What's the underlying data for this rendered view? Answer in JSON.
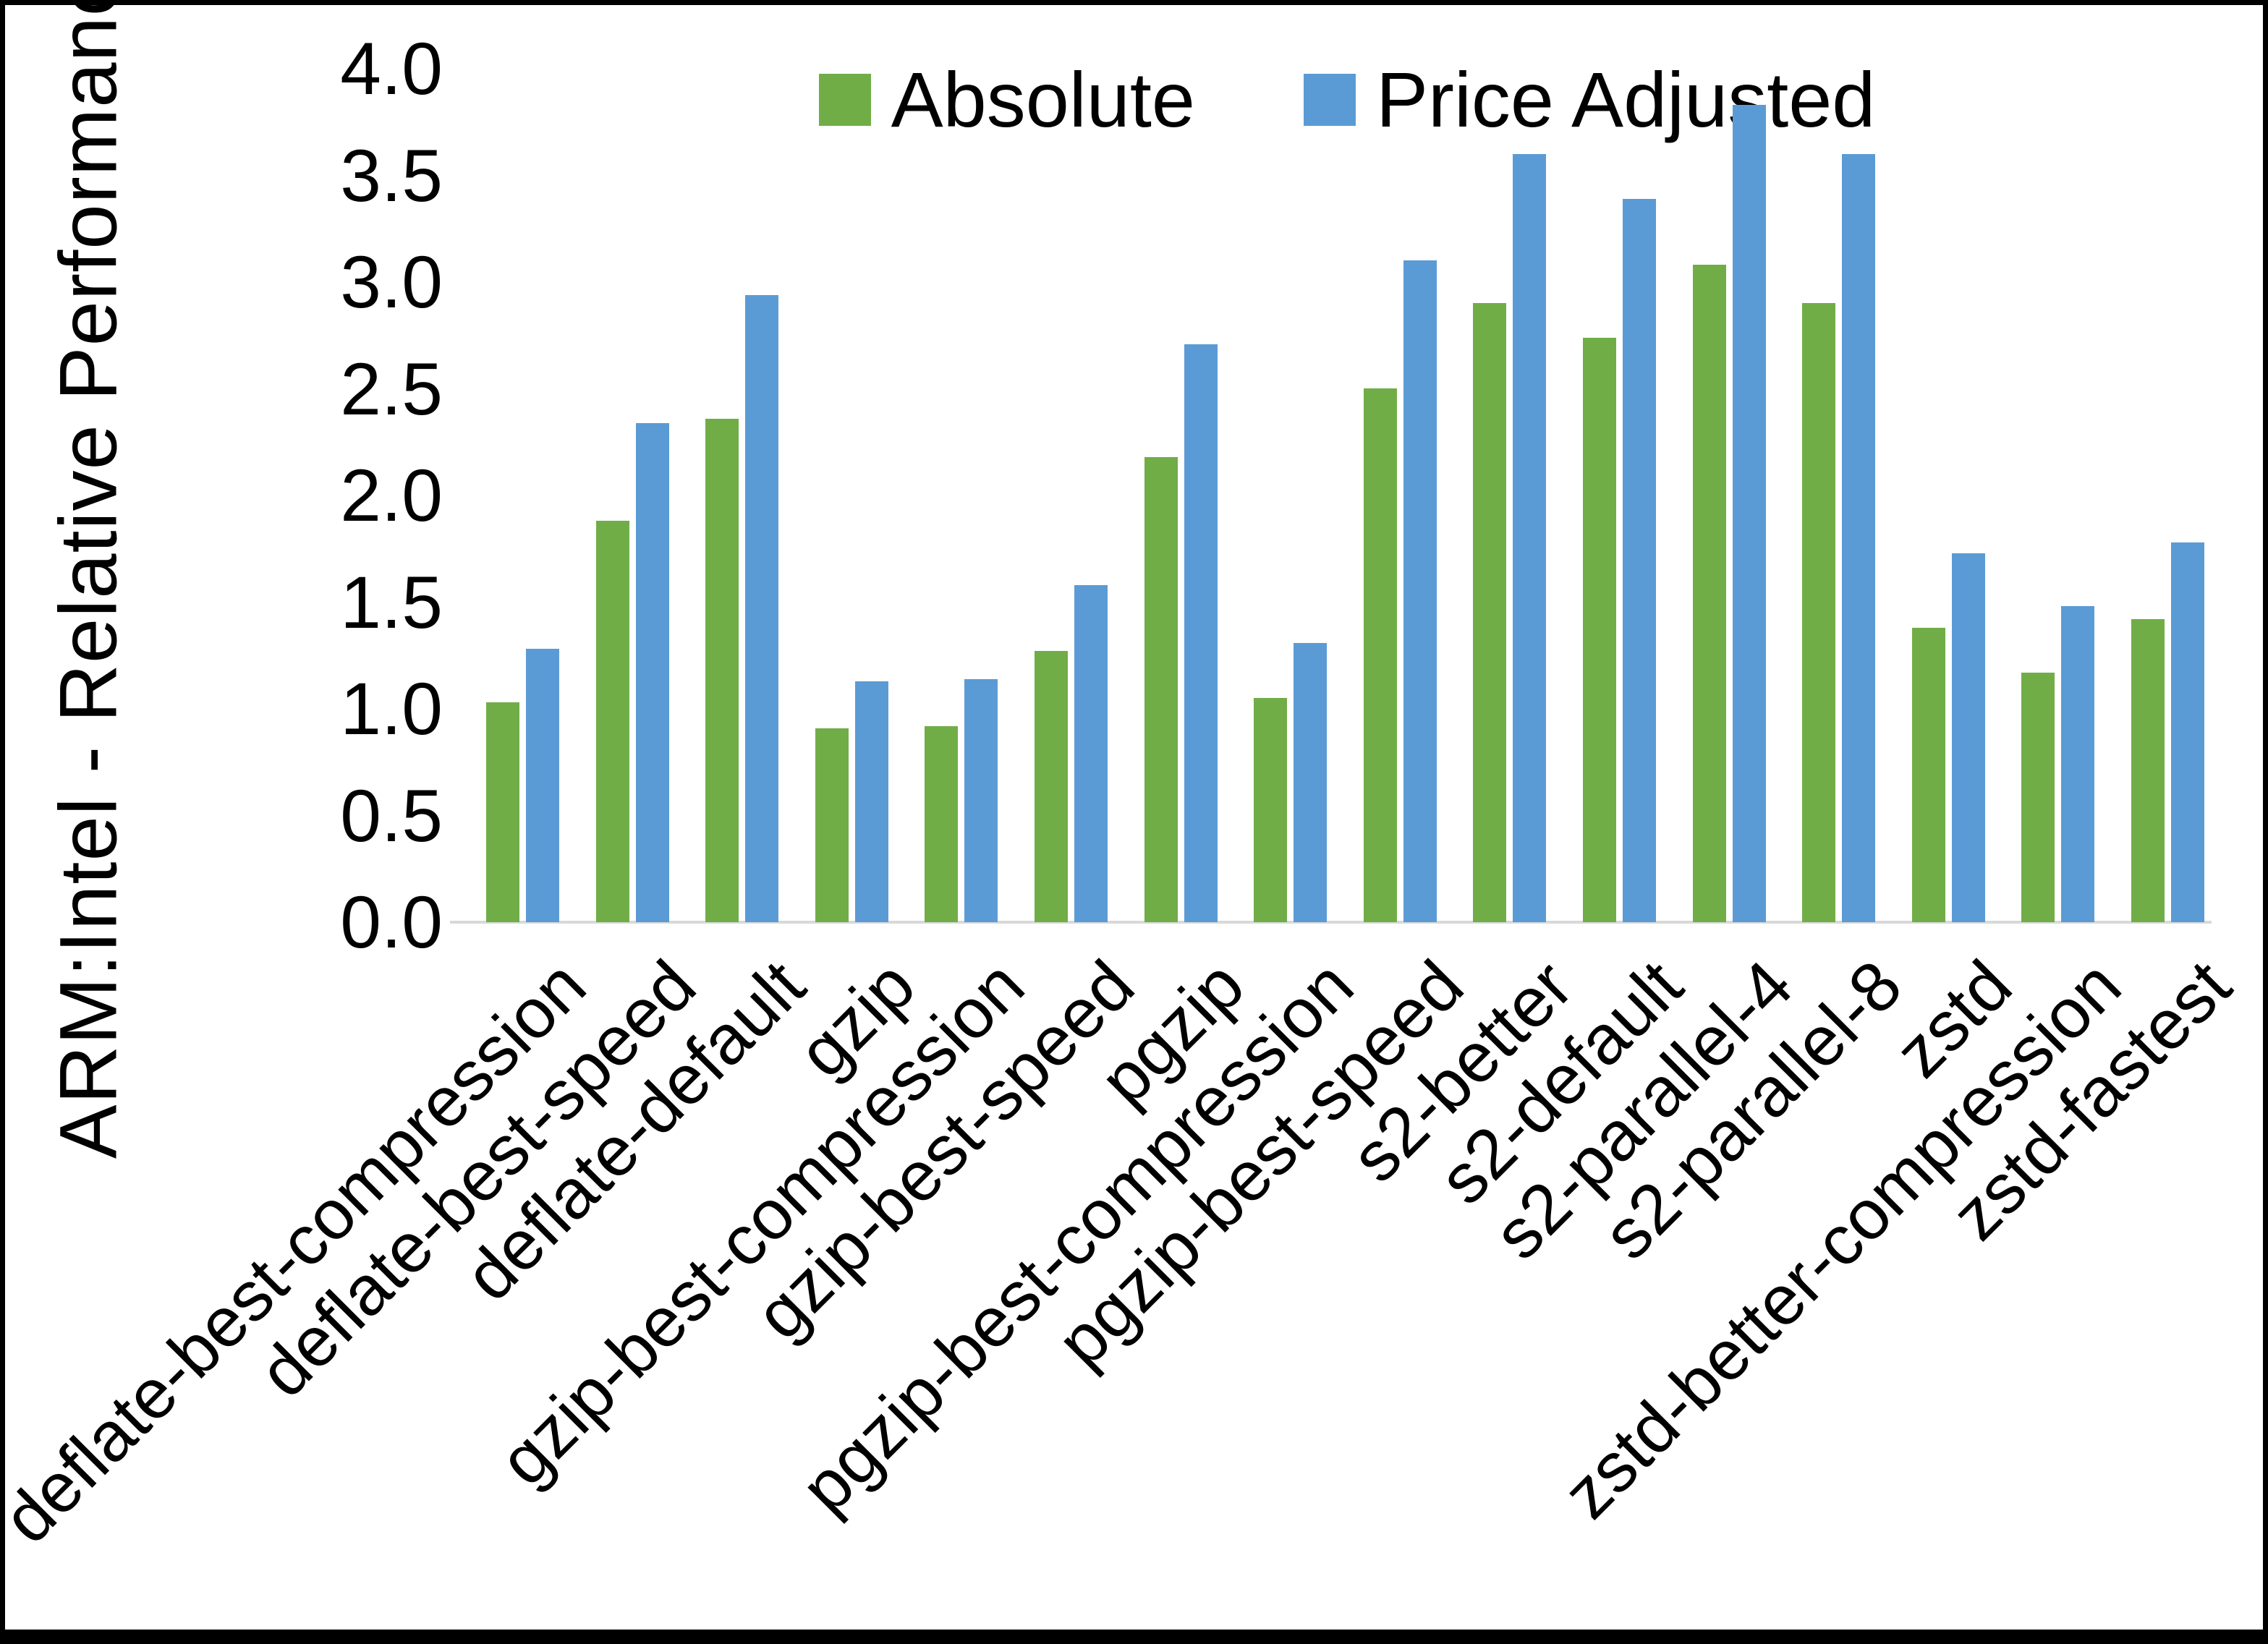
{
  "chart_data": {
    "type": "bar",
    "title": "",
    "xlabel": "",
    "ylabel": "ARM:Intel - Relative Performance",
    "ylim": [
      0.0,
      4.0
    ],
    "ytick_step": 0.5,
    "yticks": [
      "0.0",
      "0.5",
      "1.0",
      "1.5",
      "2.0",
      "2.5",
      "3.0",
      "3.5",
      "4.0"
    ],
    "grid": false,
    "legend_position": "top-center",
    "categories": [
      "deflate-best-compression",
      "deflate-best-speed",
      "deflate-default",
      "gzip",
      "gzip-best-compression",
      "gzip-best-speed",
      "pgzip",
      "pgzip-best-compression",
      "pgzip-best-speed",
      "s2-better",
      "s2-default",
      "s2-parallel-4",
      "s2-parallel-8",
      "zstd",
      "zstd-better-compression",
      "zstd-fastest"
    ],
    "series": [
      {
        "name": "Absolute",
        "color": "#70AD47",
        "values": [
          1.03,
          1.88,
          2.36,
          0.91,
          0.92,
          1.27,
          2.18,
          1.05,
          2.5,
          2.9,
          2.74,
          3.08,
          2.9,
          1.38,
          1.17,
          1.42
        ]
      },
      {
        "name": "Price Adjusted",
        "color": "#5B9BD5",
        "values": [
          1.28,
          2.34,
          2.94,
          1.13,
          1.14,
          1.58,
          2.71,
          1.31,
          3.1,
          3.6,
          3.39,
          3.83,
          3.6,
          1.73,
          1.48,
          1.78
        ]
      }
    ]
  },
  "colors": {
    "background": "#FFFFFF",
    "text": "#000000",
    "axis_line": "#D9D9D9",
    "border": "#000000"
  }
}
